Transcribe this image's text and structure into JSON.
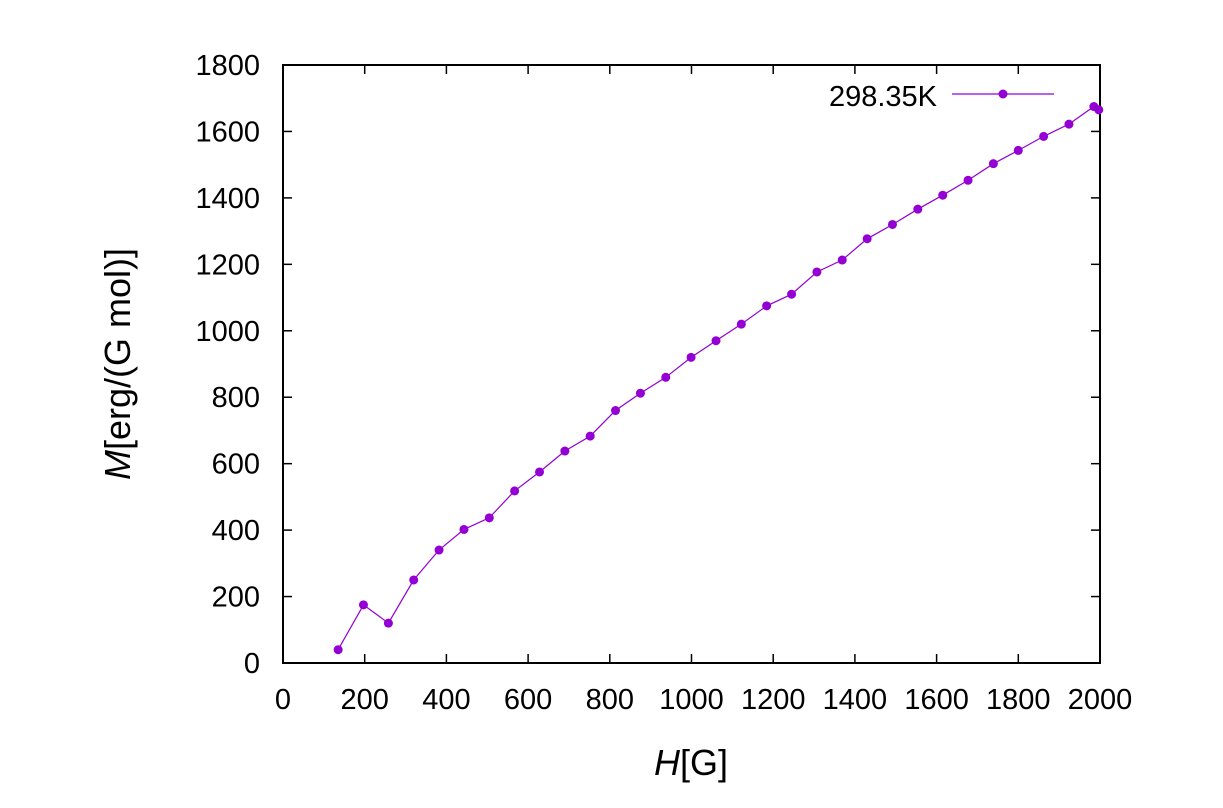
{
  "chart_data": {
    "type": "line",
    "xlabel": {
      "italic": "H",
      "rest": "[G]"
    },
    "ylabel": {
      "italic": "M",
      "rest": "[erg/(G mol)]"
    },
    "xlim": [
      0,
      2000
    ],
    "ylim": [
      0,
      1800
    ],
    "xticks": [
      0,
      200,
      400,
      600,
      800,
      1000,
      1200,
      1400,
      1600,
      1800,
      2000
    ],
    "yticks": [
      0,
      200,
      400,
      600,
      800,
      1000,
      1200,
      1400,
      1600,
      1800
    ],
    "grid": false,
    "legend_position": "top-right",
    "series": [
      {
        "name": "298.35K",
        "color": "#9400d3",
        "points": [
          [
            135,
            40
          ],
          [
            197,
            175
          ],
          [
            258,
            120
          ],
          [
            320,
            250
          ],
          [
            382,
            340
          ],
          [
            443,
            402
          ],
          [
            505,
            437
          ],
          [
            567,
            518
          ],
          [
            628,
            575
          ],
          [
            690,
            638
          ],
          [
            752,
            683
          ],
          [
            814,
            760
          ],
          [
            875,
            812
          ],
          [
            937,
            860
          ],
          [
            999,
            920
          ],
          [
            1060,
            970
          ],
          [
            1122,
            1020
          ],
          [
            1184,
            1075
          ],
          [
            1245,
            1110
          ],
          [
            1307,
            1177
          ],
          [
            1369,
            1213
          ],
          [
            1430,
            1277
          ],
          [
            1492,
            1320
          ],
          [
            1554,
            1366
          ],
          [
            1615,
            1408
          ],
          [
            1677,
            1453
          ],
          [
            1739,
            1503
          ],
          [
            1800,
            1543
          ],
          [
            1862,
            1585
          ],
          [
            1924,
            1622
          ],
          [
            1985,
            1675
          ],
          [
            1997,
            1665
          ]
        ]
      }
    ]
  }
}
